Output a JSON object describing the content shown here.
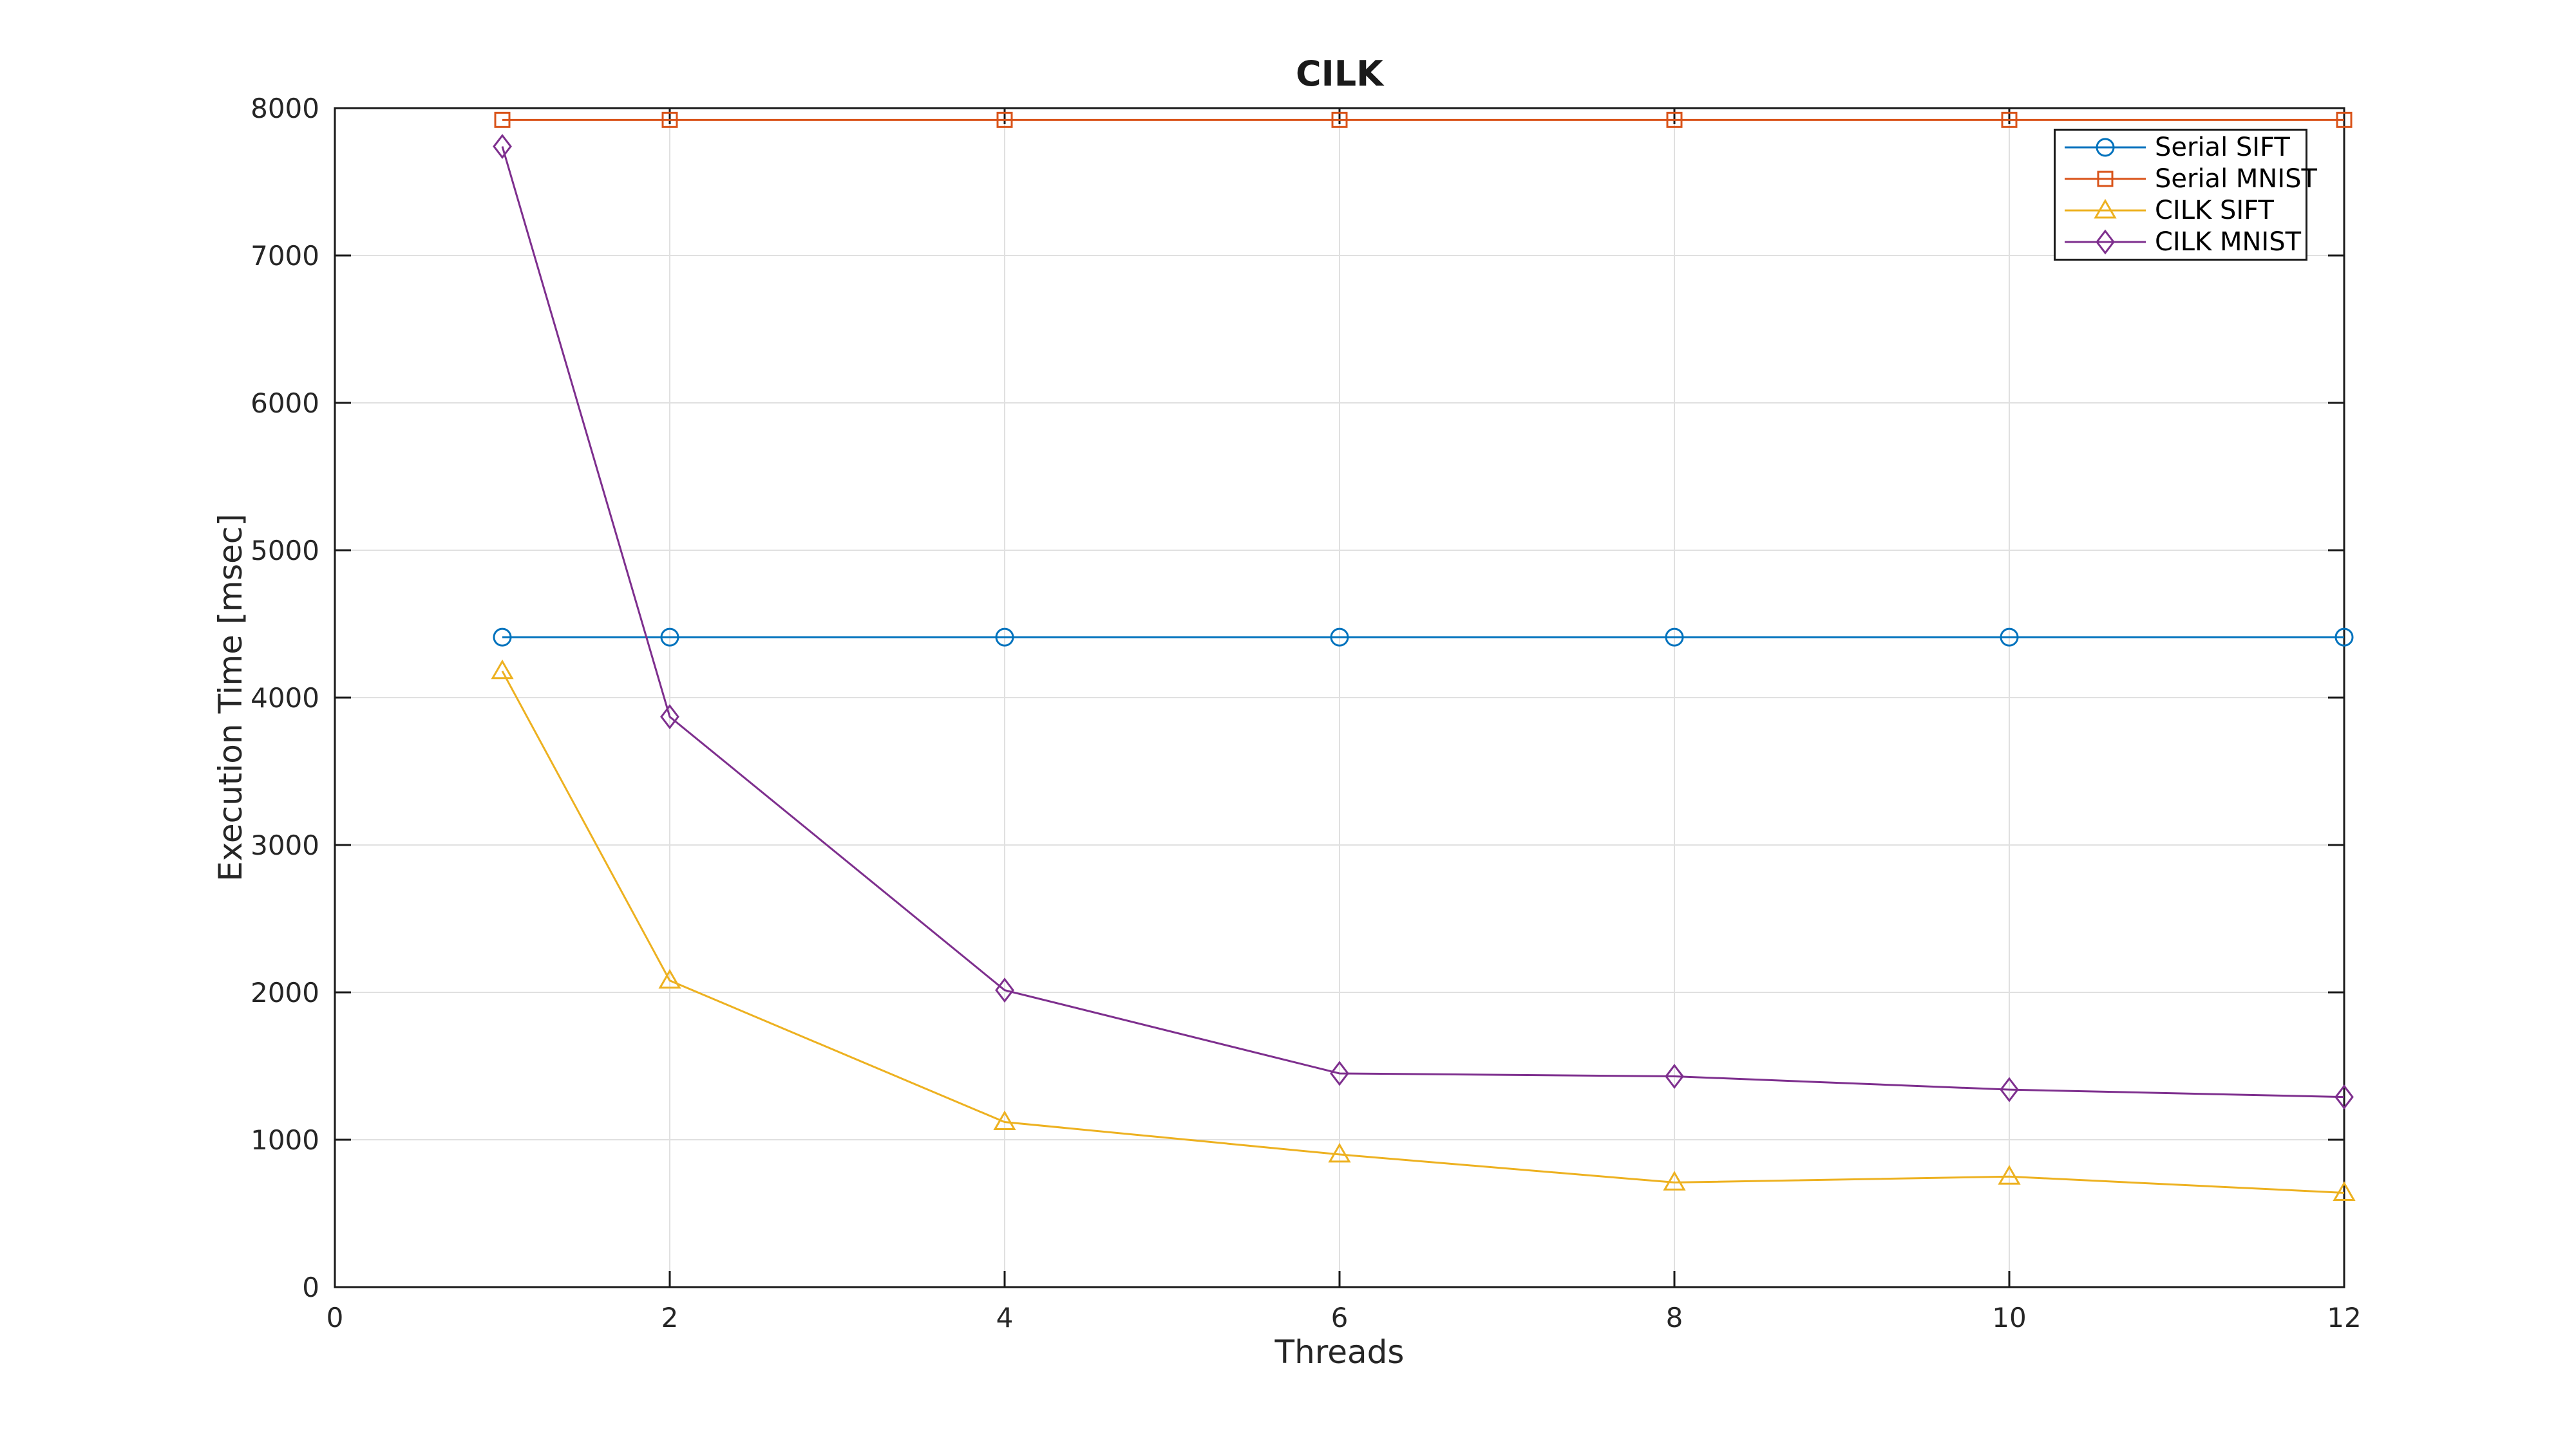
{
  "figure": {
    "background": "#ffffff"
  },
  "chart_data": {
    "type": "line",
    "title": "CILK",
    "xlabel": "Threads",
    "ylabel": "Execution Time [msec]",
    "xlim": [
      0,
      12
    ],
    "ylim": [
      0,
      8000
    ],
    "xticks": [
      0,
      2,
      4,
      6,
      8,
      10,
      12
    ],
    "yticks": [
      0,
      1000,
      2000,
      3000,
      4000,
      5000,
      6000,
      7000,
      8000
    ],
    "grid": true,
    "legend": {
      "position": "top-right",
      "border_color": "#1a1a1a",
      "background": "#ffffff"
    },
    "x": [
      1,
      2,
      4,
      6,
      8,
      10,
      12
    ],
    "series": [
      {
        "name": "Serial SIFT",
        "color": "#0072BD",
        "marker": "circle",
        "values": [
          4410,
          4410,
          4410,
          4410,
          4410,
          4410,
          4410
        ]
      },
      {
        "name": "Serial MNIST",
        "color": "#D95319",
        "marker": "square",
        "values": [
          7920,
          7920,
          7920,
          7920,
          7920,
          7920,
          7920
        ]
      },
      {
        "name": "CILK SIFT",
        "color": "#EDB120",
        "marker": "triangle",
        "values": [
          4180,
          2080,
          1120,
          900,
          710,
          750,
          640
        ]
      },
      {
        "name": "CILK MNIST",
        "color": "#7E2F8E",
        "marker": "diamond",
        "values": [
          7740,
          3870,
          2015,
          1450,
          1430,
          1340,
          1290
        ]
      }
    ],
    "axis_color": "#1a1a1a",
    "tick_label_color": "#262626",
    "grid_color": "#e0e0e0"
  }
}
